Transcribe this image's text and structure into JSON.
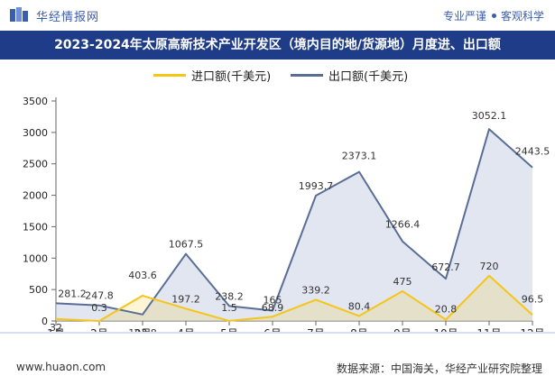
{
  "header": {
    "brand": "华经情报网",
    "tagline_left": "专业严谨",
    "tagline_right": "客观科学"
  },
  "chart_data": {
    "type": "area",
    "title": "2023-2024年太原高新技术产业开发区（境内目的地/货源地）月度进、出口额",
    "categories": [
      "1月",
      "2月",
      "3月",
      "4月",
      "5月",
      "6月",
      "7月",
      "8月",
      "9月",
      "10月",
      "11月",
      "12月"
    ],
    "ylim": [
      0,
      3500
    ],
    "yticks": [
      0,
      500,
      1000,
      1500,
      2000,
      2500,
      3000,
      3500
    ],
    "legend_position": "top",
    "grid": false,
    "series": [
      {
        "name": "进口额(千美元)",
        "color": "#f5c518",
        "values": [
          32,
          0.3,
          403.6,
          197.2,
          1.5,
          68.9,
          339.2,
          80.4,
          475,
          20.8,
          720,
          96.5
        ],
        "labels": [
          "32",
          "0.3",
          "403.6",
          "197.2",
          "1.5",
          "68.9",
          "339.2",
          "80.4",
          "475",
          "20.8",
          "720",
          "96.5"
        ]
      },
      {
        "name": "出口额(千美元)",
        "color": "#5a6e95",
        "values": [
          281.2,
          247.8,
          103.8,
          1067.5,
          238.2,
          165,
          1993.7,
          2373.1,
          1266.4,
          672.7,
          3052.1,
          2443.5
        ],
        "labels": [
          "281.2",
          "247.8",
          "103.8",
          "1067.5",
          "238.2",
          "165",
          "1993.7",
          "2373.1",
          "1266.4",
          "672.7",
          "3052.1",
          "2443.5"
        ]
      }
    ]
  },
  "footer": {
    "site": "www.huaon.com",
    "source": "数据来源：中国海关，华经产业研究院整理"
  }
}
